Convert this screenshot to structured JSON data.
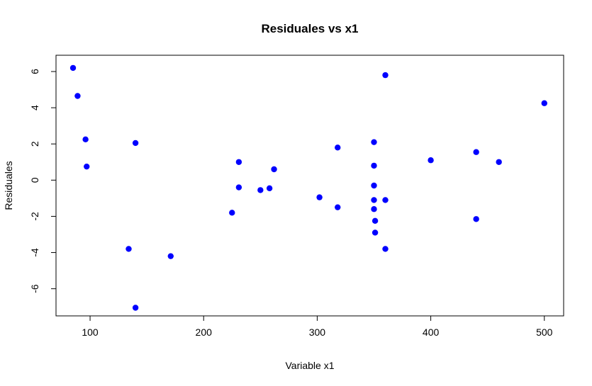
{
  "chart_data": {
    "type": "scatter",
    "title": "Residuales vs x1",
    "xlabel": "Variable x1",
    "ylabel": "Residuales",
    "xlim": [
      70,
      517
    ],
    "ylim": [
      -7.5,
      6.9
    ],
    "xticks": [
      100,
      200,
      300,
      400,
      500
    ],
    "yticks": [
      -6,
      -4,
      -2,
      0,
      2,
      4,
      6
    ],
    "xtick_labels": [
      "100",
      "200",
      "300",
      "400",
      "500"
    ],
    "ytick_labels": [
      "-6",
      "-4",
      "-2",
      "0",
      "2",
      "4",
      "6"
    ],
    "grid": false,
    "point_color": "#0000ff",
    "points": [
      {
        "x": 85,
        "y": 6.2
      },
      {
        "x": 89,
        "y": 4.65
      },
      {
        "x": 96,
        "y": 2.25
      },
      {
        "x": 97,
        "y": 0.75
      },
      {
        "x": 134,
        "y": -3.8
      },
      {
        "x": 140,
        "y": 2.05
      },
      {
        "x": 140,
        "y": -7.05
      },
      {
        "x": 171,
        "y": -4.2
      },
      {
        "x": 225,
        "y": -1.8
      },
      {
        "x": 231,
        "y": 1.0
      },
      {
        "x": 231,
        "y": -0.4
      },
      {
        "x": 250,
        "y": -0.55
      },
      {
        "x": 258,
        "y": -0.45
      },
      {
        "x": 262,
        "y": 0.6
      },
      {
        "x": 302,
        "y": -0.95
      },
      {
        "x": 318,
        "y": 1.8
      },
      {
        "x": 318,
        "y": -1.5
      },
      {
        "x": 350,
        "y": 2.1
      },
      {
        "x": 350,
        "y": 0.8
      },
      {
        "x": 350,
        "y": -0.3
      },
      {
        "x": 350,
        "y": -1.1
      },
      {
        "x": 350,
        "y": -1.6
      },
      {
        "x": 351,
        "y": -2.25
      },
      {
        "x": 351,
        "y": -2.9
      },
      {
        "x": 360,
        "y": 5.8
      },
      {
        "x": 360,
        "y": -1.1
      },
      {
        "x": 360,
        "y": -3.8
      },
      {
        "x": 400,
        "y": 1.1
      },
      {
        "x": 440,
        "y": 1.55
      },
      {
        "x": 440,
        "y": -2.15
      },
      {
        "x": 460,
        "y": 1.0
      },
      {
        "x": 500,
        "y": 4.25
      }
    ]
  }
}
